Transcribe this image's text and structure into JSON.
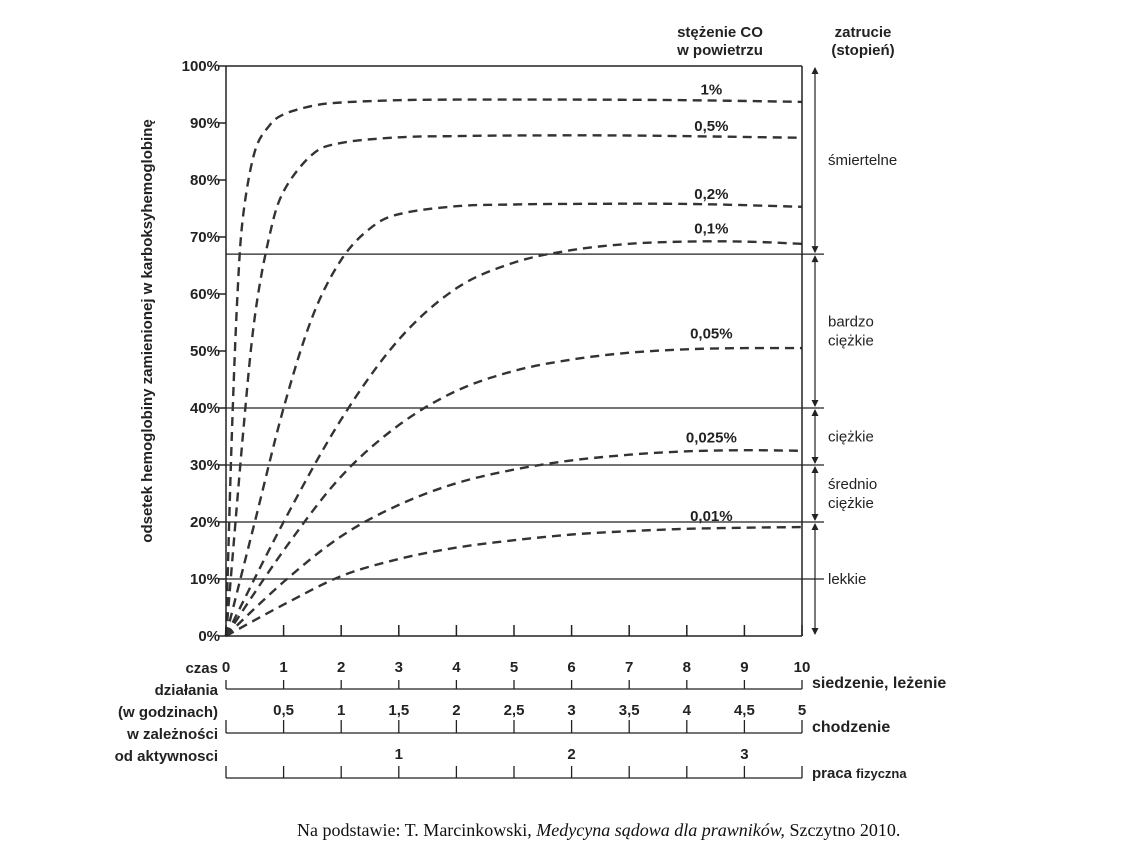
{
  "chart_data": {
    "type": "line",
    "ylabel": "odsetek  hemoglobiny zamienionej w karboksyhemoglobinę",
    "y_ticks": [
      "0%",
      "10%",
      "20%",
      "30%",
      "40%",
      "50%",
      "60%",
      "70%",
      "80%",
      "90%",
      "100%"
    ],
    "ylim": [
      0,
      100
    ],
    "xlim": [
      0,
      10
    ],
    "x_label_lines": [
      "czas",
      "działania",
      "(w godzinach)",
      "w zależności",
      "od aktywnosci"
    ],
    "x_axes": [
      {
        "label": "siedzenie, leżenie",
        "ticks": [
          "0",
          "1",
          "2",
          "3",
          "4",
          "5",
          "6",
          "7",
          "8",
          "9",
          "10"
        ]
      },
      {
        "label": "chodzenie",
        "ticks": [
          "0,5",
          "1",
          "1,5",
          "2",
          "2,5",
          "3",
          "3,5",
          "4",
          "4,5",
          "5"
        ]
      },
      {
        "label_main": "praca",
        "label_small": "fizyczna",
        "ticks": [
          "1",
          "2",
          "3"
        ]
      }
    ],
    "legend_title": [
      "stężenie CO",
      "w powietrzu"
    ],
    "series": [
      {
        "name": "1%",
        "x": [
          0,
          0.1,
          0.2,
          0.3,
          0.5,
          0.75,
          1,
          1.5,
          2,
          3,
          4,
          6,
          8,
          10
        ],
        "values": [
          0,
          35,
          60,
          74,
          85,
          89.5,
          91.5,
          93,
          93.6,
          94,
          94.1,
          94.1,
          94.0,
          93.7
        ]
      },
      {
        "name": "0,5%",
        "x": [
          0,
          0.3,
          0.5,
          0.75,
          1,
          1.5,
          2,
          3,
          4,
          5,
          7,
          10
        ],
        "values": [
          0,
          36,
          56,
          70,
          78,
          84.5,
          86.5,
          87.5,
          87.7,
          87.8,
          87.8,
          87.4
        ]
      },
      {
        "name": "0,2%",
        "x": [
          0,
          0.5,
          1,
          1.5,
          2,
          2.5,
          3,
          4,
          5,
          6,
          8,
          10
        ],
        "values": [
          0,
          20,
          40,
          56,
          66,
          71.5,
          74,
          75.4,
          75.7,
          75.8,
          75.8,
          75.3
        ]
      },
      {
        "name": "0,1%",
        "x": [
          0,
          1,
          2,
          3,
          4,
          5,
          6,
          7,
          8,
          9,
          10
        ],
        "values": [
          0,
          20,
          38,
          52,
          61,
          65.5,
          67.7,
          68.8,
          69.2,
          69.2,
          68.8
        ]
      },
      {
        "name": "0,05%",
        "x": [
          0,
          1,
          2,
          3,
          4,
          5,
          6,
          7,
          8,
          9,
          10
        ],
        "values": [
          0,
          15,
          28,
          37,
          43,
          46.5,
          48.5,
          49.7,
          50.3,
          50.5,
          50.5
        ]
      },
      {
        "name": "0,025%",
        "x": [
          0,
          1,
          2,
          3,
          4,
          5,
          6,
          7,
          8,
          9,
          10
        ],
        "values": [
          0,
          9.5,
          17.5,
          23,
          26.8,
          29.2,
          30.8,
          31.8,
          32.4,
          32.6,
          32.5
        ]
      },
      {
        "name": "0,01%",
        "x": [
          0,
          1,
          2,
          3,
          4,
          5,
          6,
          7,
          8,
          9,
          10
        ],
        "values": [
          0,
          5.5,
          10.5,
          13.5,
          15.5,
          16.8,
          17.8,
          18.4,
          18.8,
          19,
          19.1
        ]
      }
    ],
    "threshold_lines": [
      10,
      20,
      30,
      40,
      67
    ],
    "severity_title": [
      "zatrucie",
      "(stopień)"
    ],
    "severity_zones": [
      {
        "name": [
          "śmiertelne"
        ],
        "from": 67,
        "to": 100
      },
      {
        "name": [
          "bardzo",
          "ciężkie"
        ],
        "from": 40,
        "to": 67
      },
      {
        "name": [
          "ciężkie"
        ],
        "from": 30,
        "to": 40
      },
      {
        "name": [
          "średnio",
          "ciężkie"
        ],
        "from": 20,
        "to": 30
      },
      {
        "name": [
          "lekkie"
        ],
        "from": 0,
        "to": 20
      }
    ]
  },
  "source": {
    "prefix": "Na podstawie: T. Marcinkowski, ",
    "title": "Medycyna sądowa dla prawników,",
    "suffix": " Szczytno 2010."
  }
}
